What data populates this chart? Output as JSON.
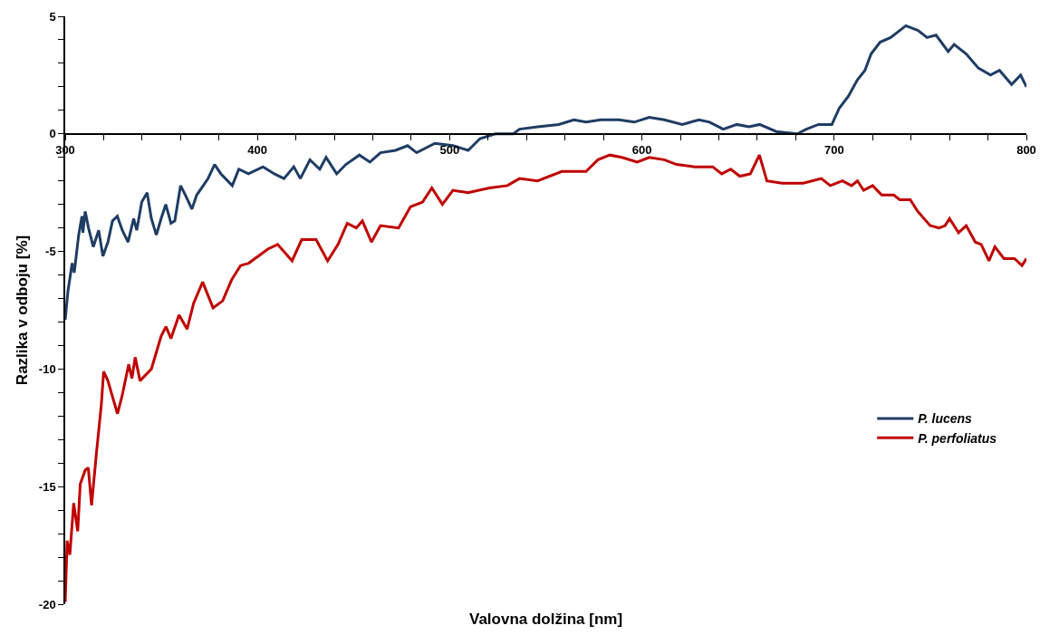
{
  "chart_data": {
    "type": "line",
    "xlabel": "Valovna dolžina [nm]",
    "ylabel": "Razlika v odboju [%]",
    "xlim": [
      300,
      800
    ],
    "ylim": [
      -20,
      5
    ],
    "xticks": [
      300,
      {
        "value": 320,
        "label": null
      },
      {
        "value": 340,
        "label": null
      },
      {
        "value": 360,
        "label": null
      },
      {
        "value": 380,
        "label": null
      },
      400,
      {
        "value": 420,
        "label": null
      },
      {
        "value": 440,
        "label": null
      },
      {
        "value": 460,
        "label": null
      },
      {
        "value": 480,
        "label": null
      },
      500,
      {
        "value": 520,
        "label": null
      },
      {
        "value": 540,
        "label": null
      },
      {
        "value": 560,
        "label": null
      },
      {
        "value": 580,
        "label": null
      },
      600,
      {
        "value": 620,
        "label": null
      },
      {
        "value": 640,
        "label": null
      },
      {
        "value": 660,
        "label": null
      },
      {
        "value": 680,
        "label": null
      },
      700,
      {
        "value": 720,
        "label": null
      },
      {
        "value": 740,
        "label": null
      },
      {
        "value": 760,
        "label": null
      },
      {
        "value": 780,
        "label": null
      },
      800
    ],
    "yticks": [
      -20,
      {
        "value": -19,
        "label": null
      },
      {
        "value": -18,
        "label": null
      },
      {
        "value": -17,
        "label": null
      },
      {
        "value": -16,
        "label": null
      },
      -15,
      {
        "value": -14,
        "label": null
      },
      {
        "value": -13,
        "label": null
      },
      {
        "value": -12,
        "label": null
      },
      {
        "value": -11,
        "label": null
      },
      -10,
      {
        "value": -9,
        "label": null
      },
      {
        "value": -8,
        "label": null
      },
      {
        "value": -7,
        "label": null
      },
      {
        "value": -6,
        "label": null
      },
      -5,
      {
        "value": -4,
        "label": null
      },
      {
        "value": -3,
        "label": null
      },
      {
        "value": -2,
        "label": null
      },
      {
        "value": -1,
        "label": null
      },
      0,
      {
        "value": 1,
        "label": null
      },
      {
        "value": 2,
        "label": null
      },
      {
        "value": 3,
        "label": null
      },
      {
        "value": 4,
        "label": null
      },
      5
    ],
    "grid": false,
    "legend": "right",
    "marker": "none",
    "line_style": "solid",
    "series": [
      {
        "name": "P. lucens",
        "color": "#1f3d64",
        "x": [
          300,
          301.4,
          303.6,
          304.7,
          307,
          308.7,
          309.2,
          310.4,
          312.1,
          314.6,
          317.4,
          319.6,
          322.2,
          324.6,
          327.1,
          329.7,
          332.7,
          335.6,
          337.2,
          339.8,
          342.6,
          344.8,
          347.4,
          349.9,
          352.3,
          355,
          357,
          360,
          362.5,
          365.9,
          368.4,
          371.8,
          374.3,
          377.7,
          381,
          386.9,
          390.3,
          395.3,
          402.9,
          408.8,
          413.8,
          418.9,
          422.3,
          427.3,
          432.4,
          435.7,
          441.2,
          446,
          453,
          458.5,
          464,
          471.8,
          478.1,
          482.8,
          492.3,
          501.7,
          509.6,
          515.8,
          523.7,
          533.1,
          536.3,
          545.7,
          556.7,
          564.6,
          570.9,
          578.7,
          588.1,
          596,
          603.8,
          611.6,
          621,
          629.7,
          635.2,
          642.3,
          649.4,
          655.7,
          661.2,
          669.9,
          680.8,
          685.5,
          691.8,
          698.8,
          702.7,
          707.4,
          712.1,
          716,
          719.2,
          723.9,
          729.4,
          737.3,
          743.6,
          748.3,
          753,
          759.3,
          762.4,
          768.7,
          775,
          781.3,
          786,
          792.3,
          797,
          800
        ],
        "values": [
          -7.9,
          -6.7,
          -5.5,
          -5.9,
          -4.3,
          -3.5,
          -4.2,
          -3.3,
          -4,
          -4.8,
          -4.1,
          -5.2,
          -4.6,
          -3.7,
          -3.5,
          -4.1,
          -4.6,
          -3.6,
          -4.1,
          -2.9,
          -2.5,
          -3.6,
          -4.3,
          -3.6,
          -3,
          -3.8,
          -3.7,
          -2.2,
          -2.6,
          -3.2,
          -2.6,
          -2.2,
          -1.9,
          -1.3,
          -1.7,
          -2.2,
          -1.5,
          -1.7,
          -1.4,
          -1.7,
          -1.9,
          -1.4,
          -1.9,
          -1.1,
          -1.5,
          -1,
          -1.7,
          -1.3,
          -0.9,
          -1.2,
          -0.8,
          -0.7,
          -0.5,
          -0.8,
          -0.4,
          -0.5,
          -0.7,
          -0.2,
          0,
          0,
          0.2,
          0.3,
          0.4,
          0.6,
          0.5,
          0.6,
          0.6,
          0.5,
          0.7,
          0.6,
          0.4,
          0.6,
          0.5,
          0.2,
          0.4,
          0.3,
          0.4,
          0.1,
          0,
          0.2,
          0.4,
          0.4,
          1.1,
          1.6,
          2.3,
          2.7,
          3.4,
          3.9,
          4.1,
          4.6,
          4.4,
          4.1,
          4.2,
          3.5,
          3.8,
          3.4,
          2.8,
          2.5,
          2.7,
          2.1,
          2.5,
          2
        ]
      },
      {
        "name": "P. perfoliatus",
        "color": "#c00000",
        "x": [
          300,
          301,
          302.4,
          304.4,
          306.5,
          307.8,
          310.4,
          312,
          313.7,
          316.2,
          318.8,
          320,
          322.2,
          324.3,
          327.2,
          329.7,
          333,
          334.7,
          336.4,
          338.9,
          344.8,
          349.9,
          352.4,
          355,
          359.2,
          363.4,
          366.8,
          371.5,
          376.9,
          381.9,
          386.6,
          391.2,
          395.4,
          405.4,
          410.5,
          418,
          423,
          430.5,
          436.5,
          441.9,
          446.7,
          451.4,
          454.6,
          459.3,
          464,
          473.4,
          479.6,
          485.9,
          490.7,
          496.2,
          501.7,
          509.5,
          520.6,
          530,
          536.3,
          545.7,
          558.3,
          564.5,
          570.9,
          577.1,
          583.3,
          589.6,
          597.5,
          603.8,
          611.6,
          618,
          627.4,
          636.8,
          641.5,
          646.2,
          650.9,
          656.4,
          661.1,
          665,
          672.9,
          683.9,
          693.3,
          698,
          704.3,
          709,
          712.1,
          715.3,
          720,
          724.7,
          731,
          734.1,
          739.6,
          743.5,
          749.9,
          754.6,
          757.7,
          760,
          764.7,
          768.7,
          773.4,
          776.5,
          780.5,
          783.6,
          788.3,
          793.8,
          797.7,
          800
        ],
        "values": [
          -19.9,
          -17.3,
          -17.9,
          -15.7,
          -16.9,
          -14.9,
          -14.3,
          -14.2,
          -15.8,
          -13.6,
          -11.5,
          -10.1,
          -10.5,
          -11.1,
          -11.9,
          -11.1,
          -9.8,
          -10.4,
          -9.5,
          -10.5,
          -10,
          -8.6,
          -8.2,
          -8.7,
          -7.7,
          -8.3,
          -7.2,
          -6.3,
          -7.4,
          -7.1,
          -6.2,
          -5.6,
          -5.5,
          -4.9,
          -4.7,
          -5.4,
          -4.5,
          -4.5,
          -5.4,
          -4.7,
          -3.8,
          -4,
          -3.7,
          -4.6,
          -3.9,
          -4,
          -3.1,
          -2.9,
          -2.3,
          -3,
          -2.4,
          -2.5,
          -2.3,
          -2.2,
          -1.9,
          -2,
          -1.6,
          -1.6,
          -1.6,
          -1.1,
          -0.9,
          -1,
          -1.2,
          -1,
          -1.1,
          -1.3,
          -1.4,
          -1.4,
          -1.7,
          -1.5,
          -1.8,
          -1.7,
          -0.9,
          -2,
          -2.1,
          -2.1,
          -1.9,
          -2.2,
          -2,
          -2.2,
          -2,
          -2.4,
          -2.2,
          -2.6,
          -2.6,
          -2.8,
          -2.8,
          -3.3,
          -3.9,
          -4,
          -3.9,
          -3.6,
          -4.2,
          -3.9,
          -4.6,
          -4.7,
          -5.4,
          -4.8,
          -5.3,
          -5.3,
          -5.6,
          -5.3
        ]
      }
    ]
  }
}
